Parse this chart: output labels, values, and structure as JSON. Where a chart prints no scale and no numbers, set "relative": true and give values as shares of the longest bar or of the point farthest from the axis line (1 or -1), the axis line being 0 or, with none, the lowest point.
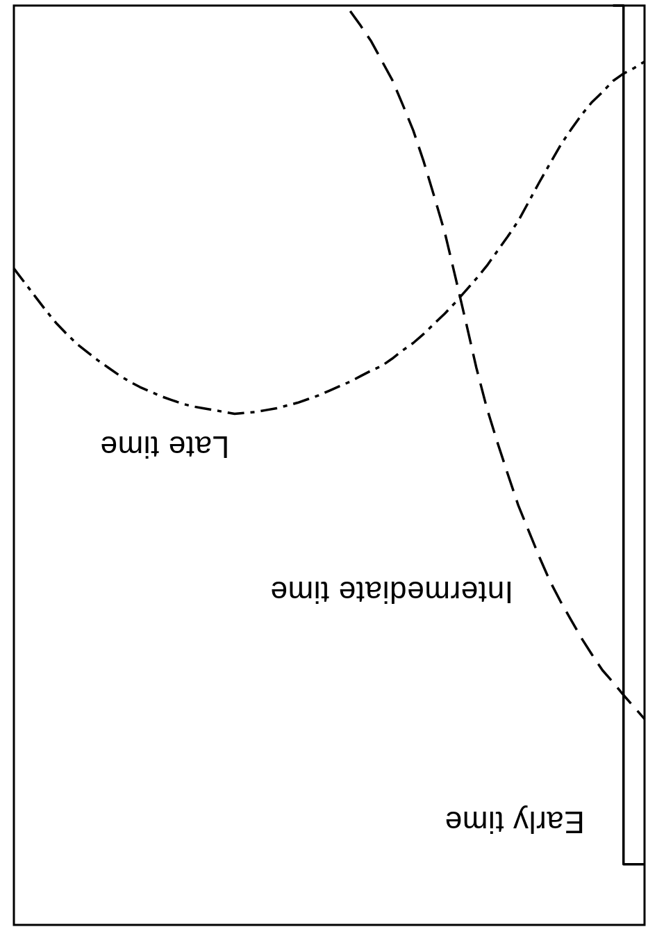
{
  "chart_data": {
    "type": "line",
    "relative": true,
    "tick_labels": false,
    "categories": [
      null,
      null,
      null,
      null,
      null,
      null,
      null,
      null,
      null,
      null,
      null,
      null,
      null,
      null,
      null,
      null,
      null,
      null,
      null,
      null,
      null,
      null,
      null,
      null,
      null,
      null,
      null,
      null,
      null,
      null,
      null,
      null,
      null,
      null,
      null,
      null,
      null,
      null,
      null,
      null,
      null,
      null,
      null,
      null,
      null,
      null,
      null,
      null,
      null,
      null,
      null,
      null,
      null,
      null,
      null,
      null,
      null,
      null,
      null,
      null,
      null
    ],
    "series": [
      {
        "name": "Early time",
        "type": "step",
        "color": "#000000",
        "line_style": "solid",
        "values": [
          null,
          null,
          null,
          null,
          null,
          null,
          null,
          null,
          null,
          null,
          null,
          null,
          null,
          null,
          null,
          null,
          null,
          null,
          null,
          null,
          null,
          null,
          null,
          null,
          null,
          null,
          null,
          null,
          null,
          null,
          null,
          null,
          null,
          null,
          null,
          null,
          null,
          null,
          null,
          null,
          null,
          null,
          null,
          null,
          null,
          null,
          null,
          null,
          null,
          null,
          null,
          null,
          null,
          null,
          null,
          null,
          null,
          1.0,
          0.066,
          0.066,
          0.066
        ]
      },
      {
        "name": "Intermediate time",
        "color": "#000000",
        "line_style": "dashed",
        "values": [
          null,
          null,
          null,
          null,
          null,
          null,
          null,
          null,
          null,
          null,
          null,
          null,
          null,
          null,
          null,
          null,
          null,
          null,
          null,
          null,
          null,
          null,
          null,
          null,
          null,
          null,
          null,
          null,
          null,
          null,
          null,
          null,
          0.994,
          0.978,
          0.961,
          0.94,
          0.919,
          0.892,
          0.864,
          0.83,
          0.792,
          0.753,
          0.705,
          0.656,
          0.606,
          0.562,
          0.525,
          0.49,
          0.456,
          0.428,
          0.4,
          0.374,
          0.352,
          0.332,
          0.312,
          0.294,
          0.277,
          0.264,
          0.25,
          0.237,
          0.224
        ]
      },
      {
        "name": "Late time",
        "color": "#000000",
        "line_style": "dashdot",
        "values": [
          0.714,
          0.699,
          0.684,
          0.669,
          0.655,
          0.643,
          0.632,
          0.623,
          0.614,
          0.606,
          0.598,
          0.591,
          0.585,
          0.58,
          0.575,
          0.571,
          0.567,
          0.564,
          0.562,
          0.56,
          0.558,
          0.556,
          0.557,
          0.558,
          0.56,
          0.562,
          0.565,
          0.568,
          0.572,
          0.576,
          0.581,
          0.586,
          0.591,
          0.597,
          0.603,
          0.608,
          0.616,
          0.625,
          0.633,
          0.643,
          0.654,
          0.665,
          0.677,
          0.69,
          0.703,
          0.717,
          0.733,
          0.749,
          0.766,
          0.787,
          0.808,
          0.828,
          0.848,
          0.865,
          0.881,
          0.895,
          0.906,
          0.918,
          0.926,
          0.932,
          0.939
        ]
      }
    ]
  }
}
